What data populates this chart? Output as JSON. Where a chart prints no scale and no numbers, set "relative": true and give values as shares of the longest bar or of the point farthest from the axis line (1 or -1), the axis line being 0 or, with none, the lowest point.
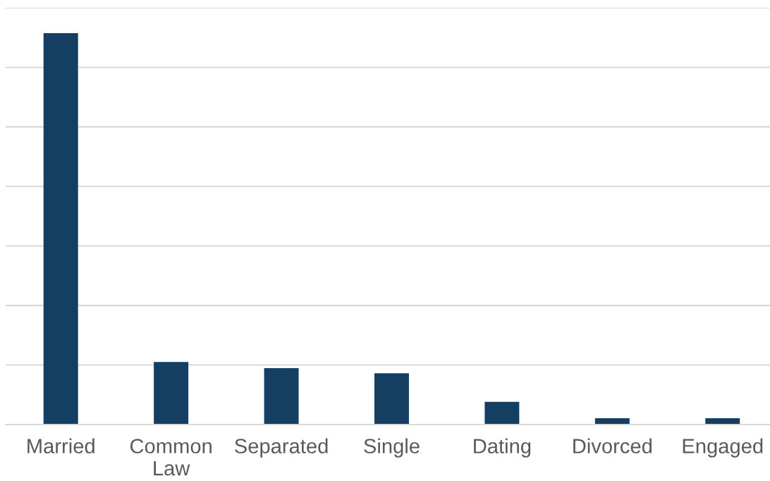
{
  "chart_data": {
    "type": "bar",
    "categories": [
      "Married",
      "Common Law",
      "Separated",
      "Single",
      "Dating",
      "Divorced",
      "Engaged"
    ],
    "values": [
      1,
      0.16,
      0.144,
      0.131,
      0.058,
      0.016,
      0.016
    ],
    "color": "#153f62",
    "relative": true,
    "grid": "y"
  }
}
